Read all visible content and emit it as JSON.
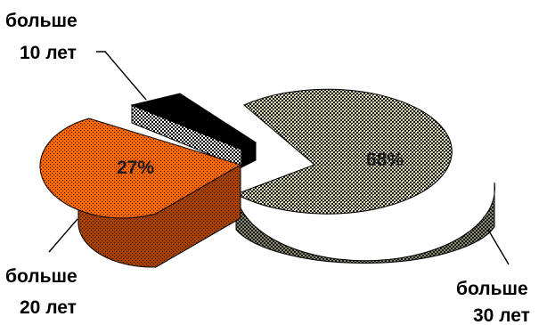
{
  "chart_data": {
    "type": "pie",
    "variant": "3d-exploded",
    "title": "",
    "slices": [
      {
        "label_line1": "больше",
        "label_line2": "30 лет",
        "value": 68,
        "value_label": "68%",
        "color": "#c8c8a0"
      },
      {
        "label_line1": "больше",
        "label_line2": "20 лет",
        "value": 27,
        "value_label": "27%",
        "color": "#ff6600"
      },
      {
        "label_line1": "больше",
        "label_line2": "10 лет",
        "value": 5,
        "value_label": "",
        "color": "#000000"
      }
    ]
  }
}
